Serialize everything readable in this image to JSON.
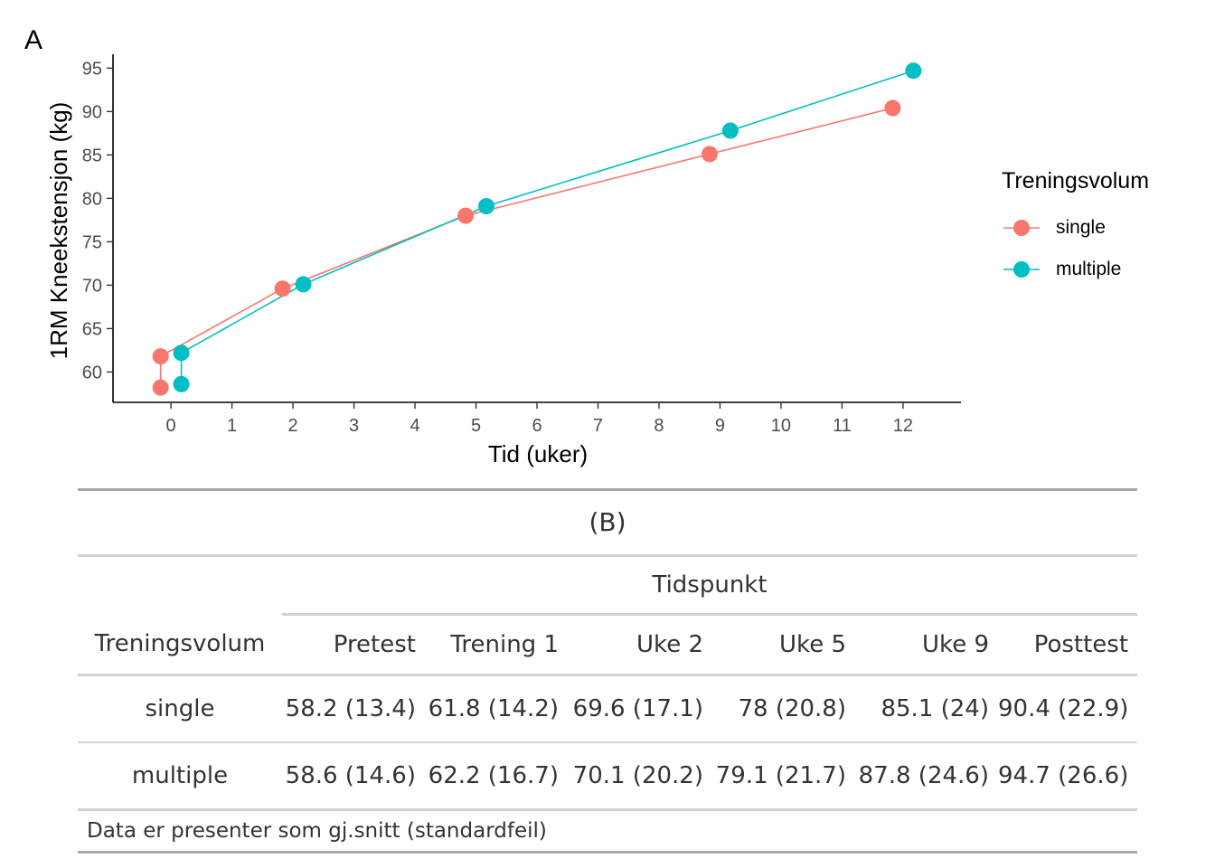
{
  "panel_label": "A",
  "chart_data": {
    "type": "line",
    "title": "",
    "xlabel": "Tid (uker)",
    "ylabel": "1RM Kneekstensjon (kg)",
    "xlim": [
      -0.95,
      12.95
    ],
    "ylim": [
      56.5,
      96.6
    ],
    "xticks": [
      0,
      1,
      2,
      3,
      4,
      5,
      6,
      7,
      8,
      9,
      10,
      11,
      12
    ],
    "yticks": [
      60,
      65,
      70,
      75,
      80,
      85,
      90,
      95
    ],
    "grid": false,
    "legend": {
      "title": "Treningsvolum",
      "position": "right"
    },
    "series": [
      {
        "name": "single",
        "color": "#F8766D",
        "x": [
          -0.17,
          -0.17,
          1.83,
          4.83,
          8.83,
          11.83
        ],
        "y": [
          58.2,
          61.8,
          69.6,
          78,
          85.1,
          90.4
        ]
      },
      {
        "name": "multiple",
        "color": "#00BFC4",
        "x": [
          0.17,
          0.17,
          2.17,
          5.17,
          9.17,
          12.17
        ],
        "y": [
          58.6,
          62.2,
          70.1,
          79.1,
          87.8,
          94.7
        ]
      }
    ]
  },
  "table": {
    "caption": "(B)",
    "spanner": "Tidspunkt",
    "stub_header": "Treningsvolum",
    "columns": [
      "Pretest",
      "Trening 1",
      "Uke 2",
      "Uke 5",
      "Uke 9",
      "Posttest"
    ],
    "rows": [
      {
        "label": "single",
        "cells": [
          "58.2 (13.4)",
          "61.8 (14.2)",
          "69.6 (17.1)",
          "78 (20.8)",
          "85.1 (24)",
          "90.4 (22.9)"
        ]
      },
      {
        "label": "multiple",
        "cells": [
          "58.6 (14.6)",
          "62.2 (16.7)",
          "70.1 (20.2)",
          "79.1 (21.7)",
          "87.8 (24.6)",
          "94.7 (26.6)"
        ]
      }
    ],
    "footnote": "Data er presenter som gj.snitt (standardfeil)"
  }
}
